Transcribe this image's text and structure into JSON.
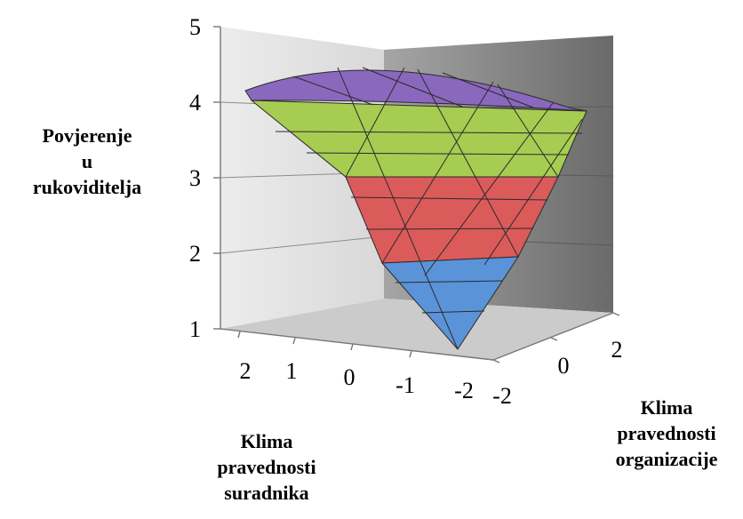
{
  "chart_data": {
    "type": "surface",
    "zlabel_lines": [
      "Povjerenje",
      "u",
      "rukoviditelja"
    ],
    "xlabel_lines": [
      "Klima",
      "pravednosti",
      "suradnika"
    ],
    "ylabel_lines": [
      "Klima",
      "pravednosti",
      "organizacije"
    ],
    "z_ticks": [
      "1",
      "2",
      "3",
      "4",
      "5"
    ],
    "x_ticks": [
      "2",
      "1",
      "0",
      "-1",
      "-2"
    ],
    "y_ticks": [
      "-2",
      "0",
      "2"
    ],
    "zlim": [
      1,
      5
    ],
    "xlim": [
      -2,
      2
    ],
    "ylim": [
      -2,
      2
    ],
    "bands": [
      {
        "range": "1-2",
        "color": "#5b93d8"
      },
      {
        "range": "2-3",
        "color": "#db5b5b"
      },
      {
        "range": "3-4",
        "color": "#a6cc52"
      },
      {
        "range": "4-5",
        "color": "#8a68bd"
      }
    ],
    "wall_colors": {
      "left": "#e5e5e5",
      "back": "#7f7f7f",
      "floor": "#cfcfcf"
    },
    "grid": true
  }
}
